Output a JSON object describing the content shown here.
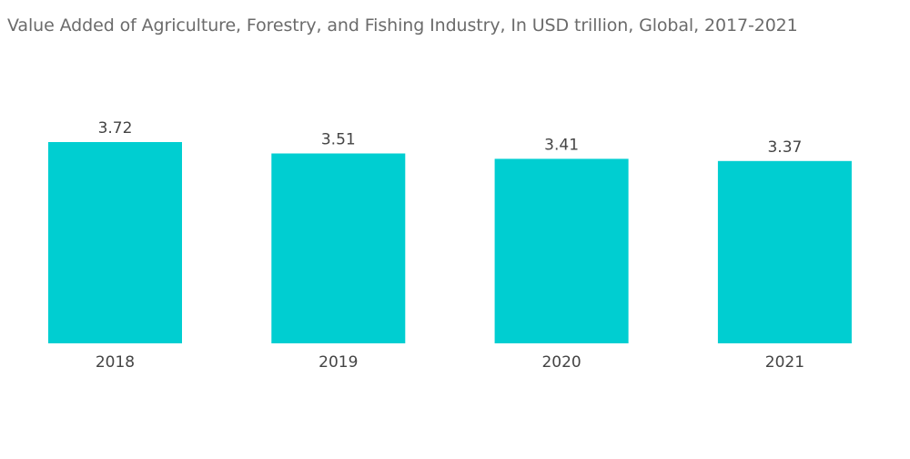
{
  "chart_data": {
    "type": "bar",
    "title": "Value Added of Agriculture, Forestry, and Fishing Industry, In USD trillion, Global, 2017-2021",
    "categories": [
      "2018",
      "2019",
      "2020",
      "2021"
    ],
    "values": [
      3.72,
      3.51,
      3.41,
      3.37
    ],
    "value_labels": [
      "3.72",
      "3.51",
      "3.41",
      "3.37"
    ],
    "xlabel": "",
    "ylabel": "",
    "ylim": [
      0,
      3.72
    ],
    "grid": false,
    "legend": "none",
    "colors": {
      "bar": "#00CED1",
      "title": "#6b6b6b",
      "label": "#444444"
    }
  }
}
